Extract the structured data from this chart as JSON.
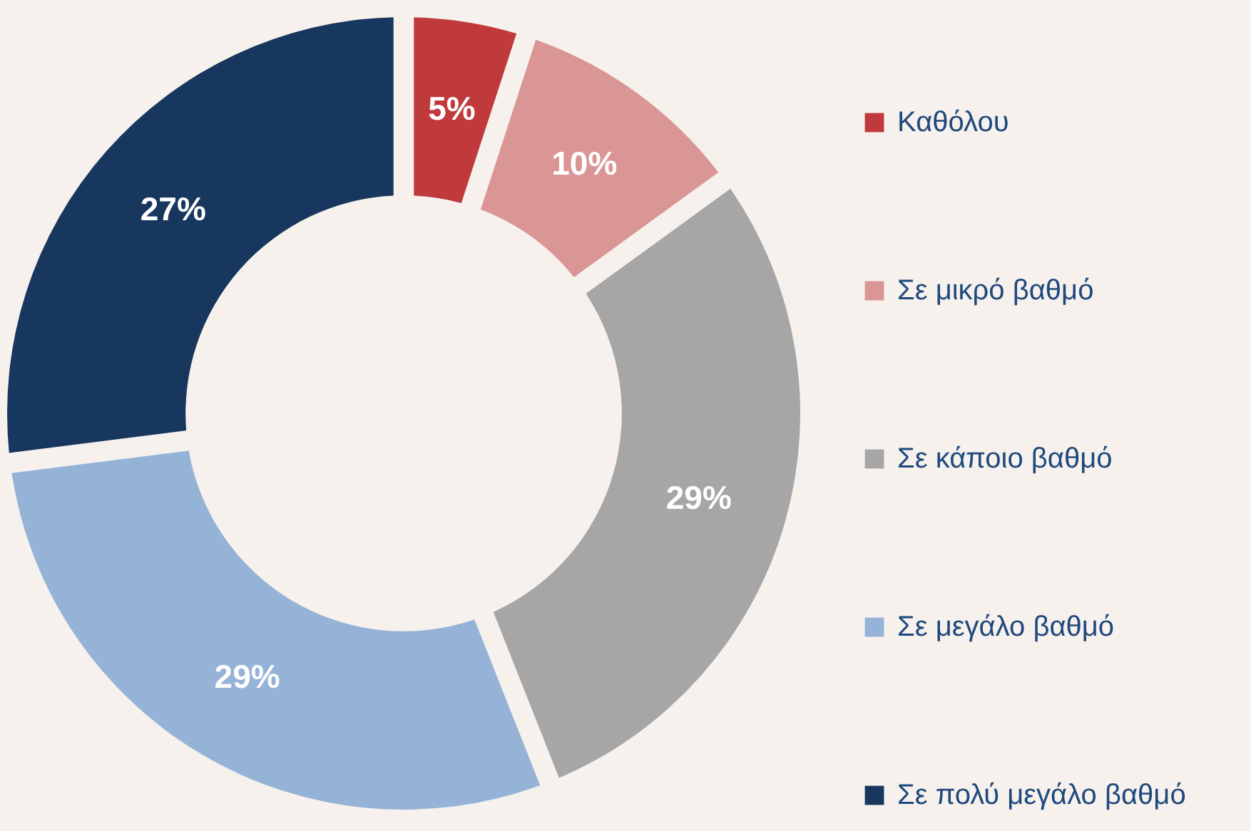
{
  "chart_data": {
    "type": "donut",
    "categories": [
      "Καθόλου",
      "Σε μικρό βαθμό",
      "Σε κάποιο βαθμό",
      "Σε μεγάλο βαθμό",
      "Σε πολύ μεγάλο βαθμό"
    ],
    "values": [
      5,
      10,
      29,
      29,
      27
    ],
    "colors": [
      "#c0393b",
      "#d99694",
      "#a6a6a6",
      "#95b3d7",
      "#17375e"
    ],
    "value_labels": [
      "5%",
      "10%",
      "29%",
      "29%",
      "27%"
    ],
    "legend": "right"
  }
}
